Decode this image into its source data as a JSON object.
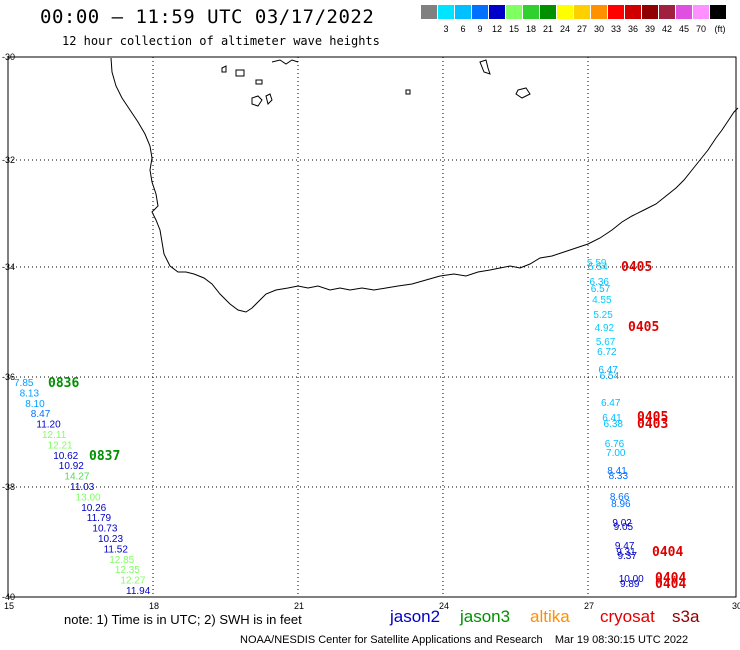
{
  "header": {
    "title": "00:00 – 11:59 UTC 03/17/2022",
    "subtitle": "12 hour collection of altimeter wave heights"
  },
  "scale": {
    "unit": "(ft)",
    "items": [
      {
        "color": "#808080",
        "label": ""
      },
      {
        "color": "#00e5ff",
        "label": "3"
      },
      {
        "color": "#00c0ff",
        "label": "6"
      },
      {
        "color": "#0070ff",
        "label": "9"
      },
      {
        "color": "#0000c8",
        "label": "12"
      },
      {
        "color": "#80ff60",
        "label": "15"
      },
      {
        "color": "#30d030",
        "label": "18"
      },
      {
        "color": "#009000",
        "label": "21"
      },
      {
        "color": "#ffff00",
        "label": "24"
      },
      {
        "color": "#ffd000",
        "label": "27"
      },
      {
        "color": "#ff9000",
        "label": "30"
      },
      {
        "color": "#ff0000",
        "label": "33"
      },
      {
        "color": "#d00000",
        "label": "36"
      },
      {
        "color": "#900000",
        "label": "39"
      },
      {
        "color": "#a02040",
        "label": "42"
      },
      {
        "color": "#e050e0",
        "label": "45"
      },
      {
        "color": "#ff90ff",
        "label": "70"
      },
      {
        "color": "#000000",
        "label": ""
      }
    ]
  },
  "axes": {
    "lat_labels": [
      "-30",
      "-32",
      "-34",
      "-36",
      "-38",
      "-40"
    ],
    "lon_labels": [
      "15",
      "18",
      "21",
      "24",
      "27",
      "30"
    ]
  },
  "tracks": {
    "west": {
      "values": [
        {
          "v": "7.85",
          "c": "#00a0ff"
        },
        {
          "v": "8.13",
          "c": "#00a0ff"
        },
        {
          "v": "8.10",
          "c": "#00a0ff"
        },
        {
          "v": "8.47",
          "c": "#0070ff"
        },
        {
          "v": "11.20",
          "c": "#0000c8"
        },
        {
          "v": "12.11",
          "c": "#80ff60"
        },
        {
          "v": "12.21",
          "c": "#80ff60"
        },
        {
          "v": "10.62",
          "c": "#0000c8"
        },
        {
          "v": "10.92",
          "c": "#0000c8"
        },
        {
          "v": "14.27",
          "c": "#50e050"
        },
        {
          "v": "11.03",
          "c": "#0000c8"
        },
        {
          "v": "13.00",
          "c": "#80ff60"
        },
        {
          "v": "10.26",
          "c": "#0000c8"
        },
        {
          "v": "11.79",
          "c": "#0000c8"
        },
        {
          "v": "10.73",
          "c": "#0000c8"
        },
        {
          "v": "10.23",
          "c": "#0000c8"
        },
        {
          "v": "11.52",
          "c": "#0000c8"
        },
        {
          "v": "12.85",
          "c": "#80ff60"
        },
        {
          "v": "12.35",
          "c": "#80ff60"
        },
        {
          "v": "12.27",
          "c": "#80ff60"
        },
        {
          "v": "11.94",
          "c": "#0000c8"
        }
      ],
      "pass_times": [
        {
          "t": "0836",
          "c": "#009000"
        },
        {
          "t": "0837",
          "c": "#009000"
        }
      ]
    },
    "east": {
      "values": [
        {
          "v": "5.59",
          "c": "#00d0ff"
        },
        {
          "v": "5.54",
          "c": "#00d0ff"
        },
        {
          "v": "6.36",
          "c": "#00c0ff"
        },
        {
          "v": "6.57",
          "c": "#00c0ff"
        },
        {
          "v": "4.55",
          "c": "#00d0ff"
        },
        {
          "v": "5.25",
          "c": "#00d0ff"
        },
        {
          "v": "4.92",
          "c": "#00d0ff"
        },
        {
          "v": "5.67",
          "c": "#00d0ff"
        },
        {
          "v": "6.72",
          "c": "#00c0ff"
        },
        {
          "v": "6.47",
          "c": "#00b0ff"
        },
        {
          "v": "6.54",
          "c": "#00b0ff"
        },
        {
          "v": "6.47",
          "c": "#00c0ff"
        },
        {
          "v": "6.41",
          "c": "#00c0ff"
        },
        {
          "v": "6.38",
          "c": "#00c0ff"
        },
        {
          "v": "6.76",
          "c": "#00c0ff"
        },
        {
          "v": "7.00",
          "c": "#00c0ff"
        },
        {
          "v": "8.41",
          "c": "#0070ff"
        },
        {
          "v": "8.33",
          "c": "#0070ff"
        },
        {
          "v": "8.66",
          "c": "#0070ff"
        },
        {
          "v": "8.96",
          "c": "#0070ff"
        },
        {
          "v": "9.02",
          "c": "#0000c8"
        },
        {
          "v": "9.05",
          "c": "#0000c8"
        },
        {
          "v": "9.47",
          "c": "#0000c8"
        },
        {
          "v": "9.31",
          "c": "#0000c8"
        },
        {
          "v": "9.37",
          "c": "#0000c8"
        },
        {
          "v": "10.00",
          "c": "#0000c8"
        },
        {
          "v": "9.89",
          "c": "#0000c8"
        }
      ],
      "pass_times": [
        {
          "t": "0405",
          "c": "#e00000"
        },
        {
          "t": "0405",
          "c": "#e00000"
        },
        {
          "t": "0405",
          "c": "#e00000"
        },
        {
          "t": "0403",
          "c": "#e00000"
        },
        {
          "t": "0404",
          "c": "#e00000"
        },
        {
          "t": "0404",
          "c": "#e00000"
        },
        {
          "t": "0404",
          "c": "#e00000"
        }
      ]
    }
  },
  "footer": {
    "note": "note: 1) Time is in UTC; 2) SWH is in feet",
    "satellites": [
      {
        "name": "jason2",
        "color": "#0000c8"
      },
      {
        "name": "jason3",
        "color": "#009000"
      },
      {
        "name": "altika",
        "color": "#ff9000"
      },
      {
        "name": "cryosat",
        "color": "#e00000"
      },
      {
        "name": "s3a",
        "color": "#900000"
      }
    ],
    "credit": "NOAA/NESDIS Center for Satellite Applications and Research    Mar 19 08:30:15 UTC 2022"
  }
}
